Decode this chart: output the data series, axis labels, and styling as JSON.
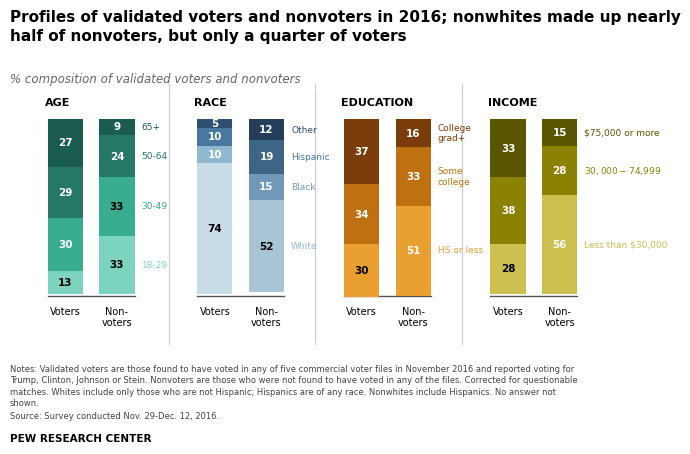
{
  "title": "Profiles of validated voters and nonvoters in 2016; nonwhites made up nearly\nhalf of nonvoters, but only a quarter of voters",
  "subtitle": "% composition of validated voters and nonvoters",
  "notes": "Notes: Validated voters are those found to have voted in any of five commercial voter files in November 2016 and reported voting for\nTrump, Clinton, Johnson or Stein. Nonvoters are those who were not found to have voted in any of the files. Corrected for questionable\nmatches. Whites include only those who are not Hispanic; Hispanics are of any race. Nonwhites include Hispanics. No answer not\nshown.",
  "source": "Source: Survey conducted Nov. 29-Dec. 12, 2016.",
  "branding": "PEW RESEARCH CENTER",
  "groups": [
    {
      "label": "AGE",
      "categories": [
        "65+",
        "50-64",
        "30-49",
        "18-29"
      ],
      "voters": [
        27,
        29,
        30,
        13
      ],
      "nonvoters": [
        9,
        24,
        33,
        33
      ],
      "colors_v": [
        "#1a5c4e",
        "#257865",
        "#38ad90",
        "#7dd4be"
      ],
      "colors_nv": [
        "#1a5c4e",
        "#257865",
        "#38ad90",
        "#7dd4be"
      ],
      "lc_v": [
        "white",
        "white",
        "white",
        "black"
      ],
      "lc_nv": [
        "white",
        "white",
        "black",
        "black"
      ],
      "cat_colors": [
        "#1a5c4e",
        "#257865",
        "#38ad90",
        "#7dd4be"
      ]
    },
    {
      "label": "RACE",
      "categories": [
        "Other",
        "Hispanic",
        "Black",
        "White"
      ],
      "voters": [
        5,
        10,
        10,
        74
      ],
      "nonvoters": [
        12,
        19,
        15,
        52
      ],
      "colors_v": [
        "#2e4f72",
        "#4878a0",
        "#90b8d0",
        "#c8dce8"
      ],
      "colors_nv": [
        "#243d58",
        "#3d6585",
        "#7098b8",
        "#a8c4d5"
      ],
      "lc_v": [
        "white",
        "white",
        "white",
        "black"
      ],
      "lc_nv": [
        "white",
        "white",
        "white",
        "black"
      ],
      "cat_colors": [
        "#2e4f72",
        "#4878a0",
        "#7098b8",
        "#90b8d0"
      ]
    },
    {
      "label": "EDUCATION",
      "categories": [
        "College\ngrad+",
        "Some\ncollege",
        "HS or less"
      ],
      "voters": [
        37,
        34,
        30
      ],
      "nonvoters": [
        16,
        33,
        51
      ],
      "colors_v": [
        "#7a3c08",
        "#bf7010",
        "#eaa030"
      ],
      "colors_nv": [
        "#7a3c08",
        "#bf7010",
        "#eaa030"
      ],
      "lc_v": [
        "white",
        "white",
        "black"
      ],
      "lc_nv": [
        "white",
        "white",
        "white"
      ],
      "cat_colors": [
        "#7a3c08",
        "#bf7010",
        "#eaa030"
      ]
    },
    {
      "label": "INCOME",
      "categories": [
        "$75,000 or more",
        "$30,000-$74,999",
        "Less than $30,000"
      ],
      "voters": [
        33,
        38,
        28
      ],
      "nonvoters": [
        15,
        28,
        56
      ],
      "colors_v": [
        "#5a5500",
        "#8a8200",
        "#ccc050"
      ],
      "colors_nv": [
        "#5a5500",
        "#8a8200",
        "#ccc050"
      ],
      "lc_v": [
        "white",
        "white",
        "black"
      ],
      "lc_nv": [
        "white",
        "white",
        "white"
      ],
      "cat_colors": [
        "#5a5500",
        "#8a8200",
        "#ccc050"
      ]
    }
  ],
  "background_color": "#ffffff"
}
